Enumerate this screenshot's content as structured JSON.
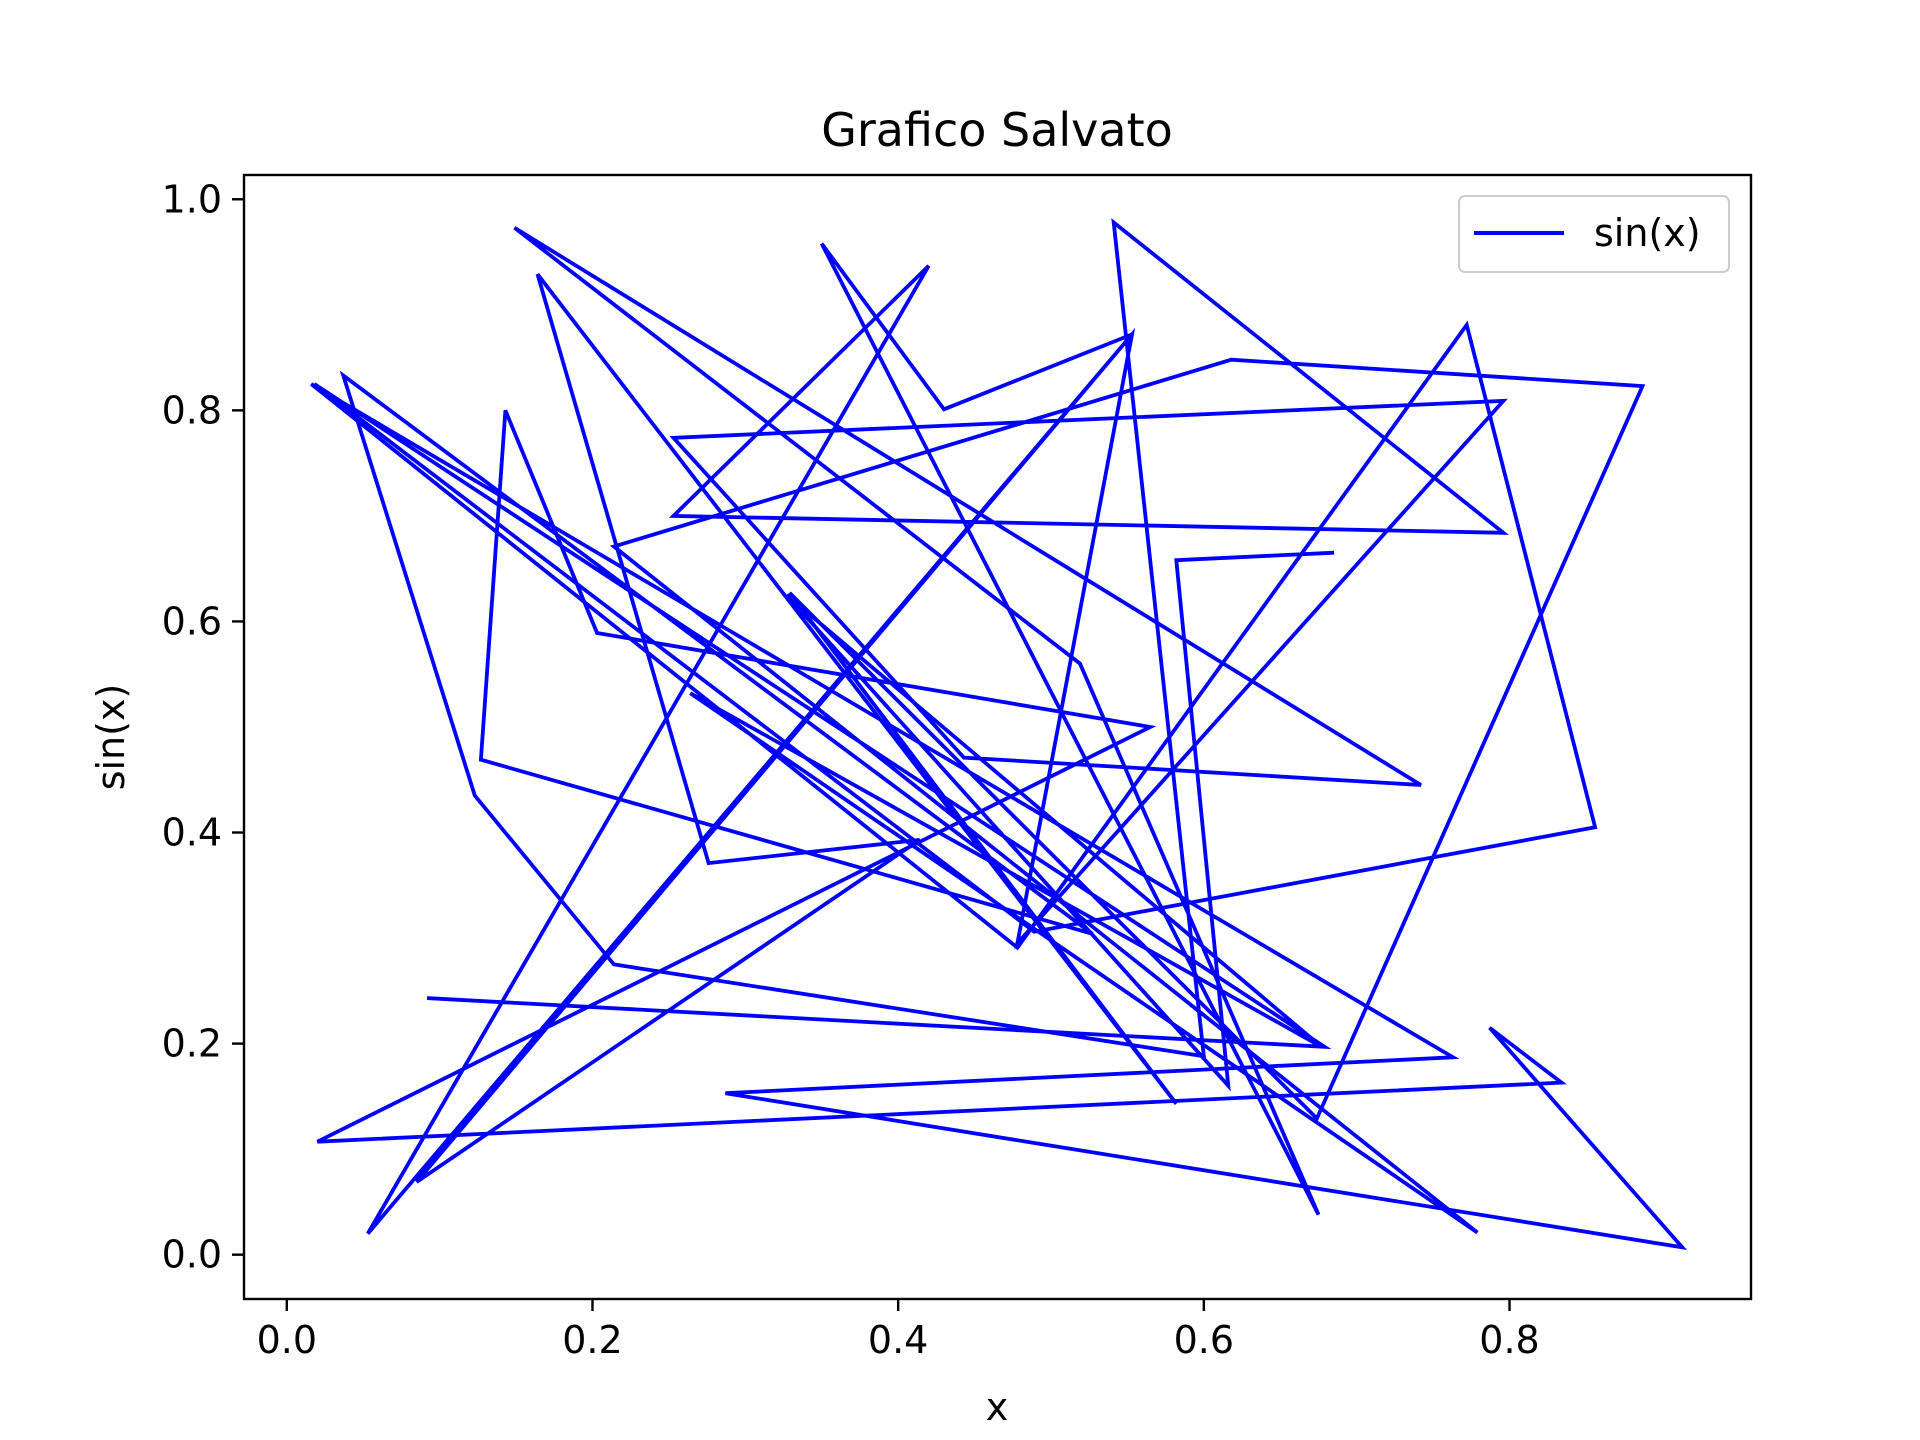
{
  "chart_data": {
    "type": "line",
    "title": "Grafico Salvato",
    "xlabel": "x",
    "ylabel": "sin(x)",
    "xlim": [
      -0.028,
      0.958
    ],
    "ylim": [
      -0.042,
      1.023
    ],
    "xticks": [
      0.0,
      0.2,
      0.4,
      0.6,
      0.8
    ],
    "yticks": [
      0.0,
      0.2,
      0.4,
      0.6,
      0.8,
      1.0
    ],
    "xtick_labels": [
      "0.0",
      "0.2",
      "0.4",
      "0.6",
      "0.8"
    ],
    "ytick_labels": [
      "0.0",
      "0.2",
      "0.4",
      "0.6",
      "0.8",
      "1.0"
    ],
    "grid": false,
    "legend_position": "top-right",
    "series": [
      {
        "name": "sin(x)",
        "color": "#0000ff",
        "points": [
          [
            0.093,
            0.243
          ],
          [
            0.679,
            0.197
          ],
          [
            0.018,
            0.825
          ],
          [
            0.489,
            0.306
          ],
          [
            0.856,
            0.405
          ],
          [
            0.772,
            0.881
          ],
          [
            0.478,
            0.291
          ],
          [
            0.016,
            0.825
          ],
          [
            0.763,
            0.187
          ],
          [
            0.287,
            0.153
          ],
          [
            0.913,
            0.007
          ],
          [
            0.787,
            0.215
          ],
          [
            0.834,
            0.163
          ],
          [
            0.02,
            0.107
          ],
          [
            0.565,
            0.5
          ],
          [
            0.203,
            0.589
          ],
          [
            0.143,
            0.8
          ],
          [
            0.127,
            0.469
          ],
          [
            0.527,
            0.304
          ],
          [
            0.037,
            0.833
          ],
          [
            0.123,
            0.435
          ],
          [
            0.214,
            0.275
          ],
          [
            0.6,
            0.188
          ],
          [
            0.541,
            0.978
          ],
          [
            0.796,
            0.684
          ],
          [
            0.253,
            0.7
          ],
          [
            0.42,
            0.937
          ],
          [
            0.053,
            0.02
          ],
          [
            0.553,
            0.872
          ],
          [
            0.478,
            0.295
          ],
          [
            0.796,
            0.809
          ],
          [
            0.253,
            0.774
          ],
          [
            0.443,
            0.471
          ],
          [
            0.742,
            0.445
          ],
          [
            0.149,
            0.973
          ],
          [
            0.519,
            0.56
          ],
          [
            0.675,
            0.038
          ],
          [
            0.35,
            0.958
          ],
          [
            0.43,
            0.801
          ],
          [
            0.553,
            0.872
          ],
          [
            0.085,
            0.069
          ],
          [
            0.414,
            0.393
          ],
          [
            0.276,
            0.371
          ],
          [
            0.164,
            0.929
          ],
          [
            0.582,
            0.143
          ],
          [
            0.329,
            0.627
          ],
          [
            0.674,
            0.129
          ],
          [
            0.887,
            0.823
          ],
          [
            0.618,
            0.848
          ],
          [
            0.214,
            0.671
          ],
          [
            0.779,
            0.021
          ],
          [
            0.264,
            0.532
          ],
          [
            0.677,
            0.197
          ],
          [
            0.327,
            0.625
          ],
          [
            0.616,
            0.16
          ],
          [
            0.582,
            0.658
          ],
          [
            0.684,
            0.665
          ]
        ]
      }
    ]
  }
}
